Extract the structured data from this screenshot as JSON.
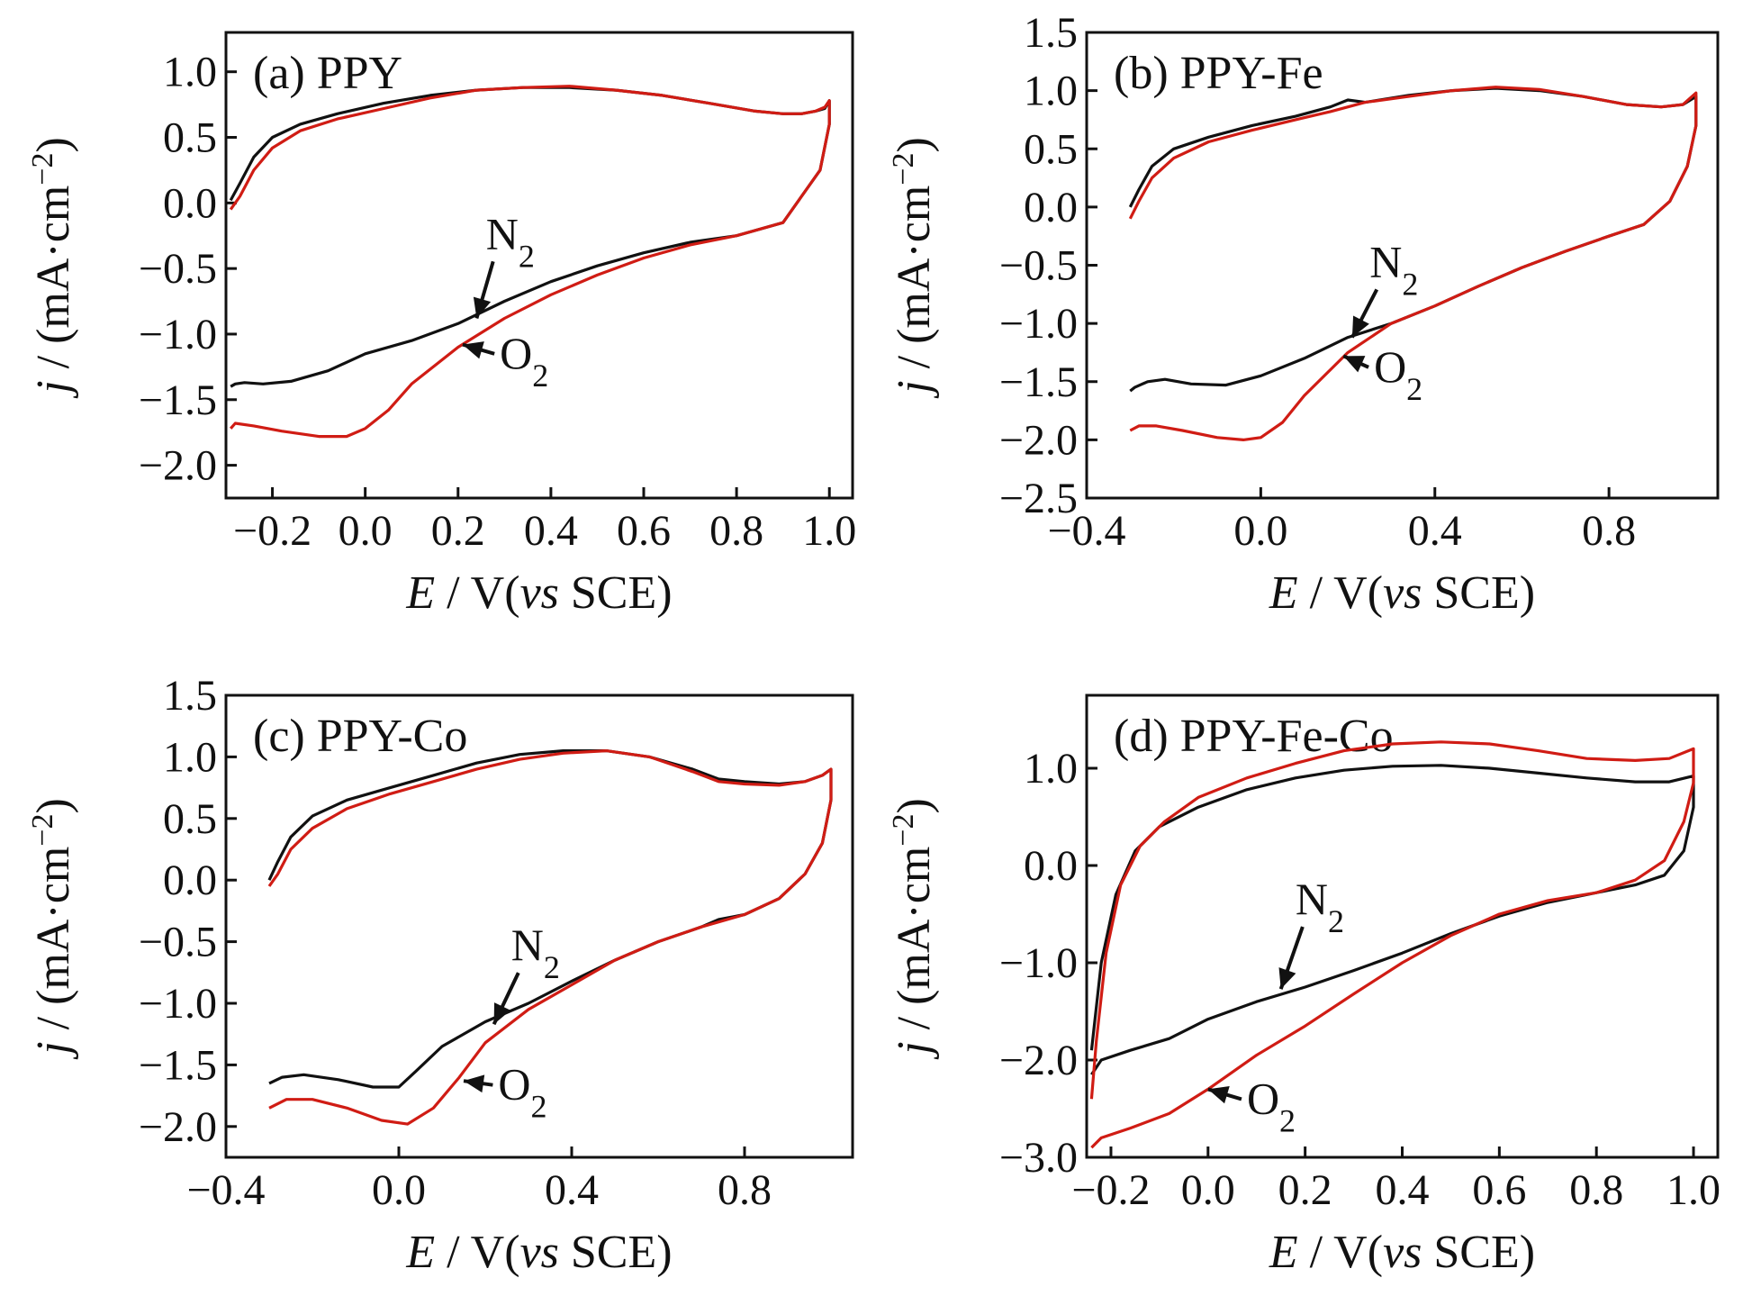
{
  "chart_data": [
    {
      "type": "line",
      "panel_label": "(a) PPY",
      "xlabel": {
        "italic": "E",
        "main": " / V(",
        "italic2": "vs",
        "tail": " SCE)"
      },
      "ylabel": {
        "italic": "j",
        "main": " / (mA·cm",
        "sup": "−2",
        "tail": ")"
      },
      "xlim": [
        -0.3,
        1.05
      ],
      "ylim": [
        -2.25,
        1.3
      ],
      "xticks": [
        -0.2,
        0.0,
        0.2,
        0.4,
        0.6,
        0.8,
        1.0
      ],
      "xtick_labels": [
        "−0.2",
        "0.0",
        "0.2",
        "0.4",
        "0.6",
        "0.8",
        "1.0"
      ],
      "yticks": [
        1.0,
        0.5,
        0.0,
        -0.5,
        -1.0,
        -1.5,
        -2.0
      ],
      "ytick_labels": [
        "1.0",
        "0.5",
        "0.0",
        "−0.5",
        "−1.0",
        "−1.5",
        "−2.0"
      ],
      "annotations": [
        {
          "label": "N",
          "sub": "2",
          "x": 0.26,
          "y": -0.35,
          "tip": [
            0.24,
            -0.88
          ]
        },
        {
          "label": "O",
          "sub": "2",
          "x": 0.29,
          "y": -1.26,
          "tip": [
            0.21,
            -1.08
          ]
        }
      ],
      "series": [
        {
          "name": "N2",
          "color": "#111111",
          "x": [
            -0.29,
            -0.27,
            -0.24,
            -0.2,
            -0.14,
            -0.06,
            0.04,
            0.14,
            0.24,
            0.34,
            0.44,
            0.54,
            0.64,
            0.74,
            0.84,
            0.9,
            0.94,
            0.97,
            0.99,
            1.0,
            1.0,
            0.98,
            0.94,
            0.9,
            0.8,
            0.7,
            0.6,
            0.5,
            0.4,
            0.3,
            0.2,
            0.1,
            0.0,
            -0.08,
            -0.16,
            -0.22,
            -0.26,
            -0.28,
            -0.29
          ],
          "y": [
            0.02,
            0.15,
            0.35,
            0.5,
            0.6,
            0.68,
            0.76,
            0.82,
            0.86,
            0.88,
            0.88,
            0.86,
            0.82,
            0.76,
            0.7,
            0.68,
            0.68,
            0.7,
            0.72,
            0.78,
            0.6,
            0.25,
            0.05,
            -0.15,
            -0.25,
            -0.3,
            -0.38,
            -0.48,
            -0.6,
            -0.75,
            -0.92,
            -1.05,
            -1.15,
            -1.28,
            -1.36,
            -1.38,
            -1.37,
            -1.38,
            -1.4
          ]
        },
        {
          "name": "O2",
          "color": "#d01c14",
          "x": [
            -0.29,
            -0.27,
            -0.24,
            -0.2,
            -0.14,
            -0.06,
            0.04,
            0.14,
            0.24,
            0.34,
            0.44,
            0.54,
            0.64,
            0.74,
            0.84,
            0.9,
            0.94,
            0.97,
            0.99,
            1.0,
            1.0,
            0.98,
            0.94,
            0.9,
            0.8,
            0.7,
            0.6,
            0.5,
            0.4,
            0.3,
            0.2,
            0.1,
            0.05,
            0.0,
            -0.04,
            -0.1,
            -0.18,
            -0.24,
            -0.28,
            -0.29
          ],
          "y": [
            -0.05,
            0.05,
            0.25,
            0.42,
            0.55,
            0.64,
            0.72,
            0.8,
            0.86,
            0.88,
            0.89,
            0.86,
            0.82,
            0.76,
            0.7,
            0.68,
            0.68,
            0.7,
            0.73,
            0.78,
            0.6,
            0.25,
            0.05,
            -0.15,
            -0.25,
            -0.32,
            -0.42,
            -0.55,
            -0.7,
            -0.88,
            -1.1,
            -1.38,
            -1.58,
            -1.72,
            -1.78,
            -1.78,
            -1.74,
            -1.7,
            -1.68,
            -1.72
          ]
        }
      ]
    },
    {
      "type": "line",
      "panel_label": "(b) PPY-Fe",
      "xlabel": {
        "italic": "E",
        "main": " / V(",
        "italic2": "vs",
        "tail": " SCE)"
      },
      "ylabel": {
        "italic": "j",
        "main": " / (mA·cm",
        "sup": "−2",
        "tail": ")"
      },
      "xlim": [
        -0.4,
        1.05
      ],
      "ylim": [
        -2.5,
        1.5
      ],
      "xticks": [
        -0.4,
        0.0,
        0.4,
        0.8
      ],
      "xtick_labels": [
        "−0.4",
        "0.0",
        "0.4",
        "0.8"
      ],
      "yticks": [
        1.5,
        1.0,
        0.5,
        0.0,
        -0.5,
        -1.0,
        -1.5,
        -2.0,
        -2.5
      ],
      "ytick_labels": [
        "1.5",
        "1.0",
        "0.5",
        "0.0",
        "−0.5",
        "−1.0",
        "−1.5",
        "−2.0",
        "−2.5"
      ],
      "annotations": [
        {
          "label": "N",
          "sub": "2",
          "x": 0.25,
          "y": -0.6,
          "tip": [
            0.21,
            -1.12
          ]
        },
        {
          "label": "O",
          "sub": "2",
          "x": 0.26,
          "y": -1.5,
          "tip": [
            0.19,
            -1.28
          ]
        }
      ],
      "series": [
        {
          "name": "N2",
          "color": "#111111",
          "x": [
            -0.3,
            -0.28,
            -0.25,
            -0.2,
            -0.12,
            -0.02,
            0.08,
            0.16,
            0.2,
            0.24,
            0.34,
            0.44,
            0.54,
            0.64,
            0.74,
            0.84,
            0.92,
            0.97,
            1.0,
            1.0,
            0.98,
            0.94,
            0.88,
            0.8,
            0.7,
            0.6,
            0.5,
            0.4,
            0.3,
            0.2,
            0.1,
            0.0,
            -0.08,
            -0.16,
            -0.22,
            -0.26,
            -0.29,
            -0.3
          ],
          "y": [
            0.0,
            0.15,
            0.35,
            0.5,
            0.6,
            0.7,
            0.78,
            0.86,
            0.92,
            0.9,
            0.96,
            1.0,
            1.02,
            1.0,
            0.95,
            0.88,
            0.86,
            0.88,
            0.95,
            0.7,
            0.35,
            0.05,
            -0.15,
            -0.25,
            -0.38,
            -0.52,
            -0.68,
            -0.85,
            -1.0,
            -1.12,
            -1.3,
            -1.45,
            -1.53,
            -1.52,
            -1.48,
            -1.5,
            -1.55,
            -1.58
          ]
        },
        {
          "name": "O2",
          "color": "#d01c14",
          "x": [
            -0.3,
            -0.28,
            -0.25,
            -0.2,
            -0.12,
            -0.02,
            0.08,
            0.16,
            0.24,
            0.34,
            0.44,
            0.54,
            0.64,
            0.74,
            0.84,
            0.92,
            0.97,
            1.0,
            1.0,
            0.98,
            0.94,
            0.88,
            0.8,
            0.7,
            0.6,
            0.5,
            0.4,
            0.3,
            0.2,
            0.1,
            0.05,
            0.0,
            -0.04,
            -0.1,
            -0.18,
            -0.24,
            -0.28,
            -0.3
          ],
          "y": [
            -0.1,
            0.05,
            0.25,
            0.42,
            0.56,
            0.66,
            0.75,
            0.82,
            0.9,
            0.95,
            1.0,
            1.03,
            1.01,
            0.95,
            0.88,
            0.86,
            0.88,
            0.98,
            0.7,
            0.35,
            0.05,
            -0.15,
            -0.25,
            -0.38,
            -0.52,
            -0.68,
            -0.85,
            -1.0,
            -1.25,
            -1.62,
            -1.85,
            -1.98,
            -2.0,
            -1.98,
            -1.92,
            -1.88,
            -1.88,
            -1.92
          ]
        }
      ]
    },
    {
      "type": "line",
      "panel_label": "(c) PPY-Co",
      "xlabel": {
        "italic": "E",
        "main": " / V(",
        "italic2": "vs",
        "tail": " SCE)"
      },
      "ylabel": {
        "italic": "j",
        "main": " / (mA·cm",
        "sup": "−2",
        "tail": ")"
      },
      "xlim": [
        -0.4,
        1.05
      ],
      "ylim": [
        -2.25,
        1.5
      ],
      "xticks": [
        -0.4,
        0.0,
        0.4,
        0.8
      ],
      "xtick_labels": [
        "−0.4",
        "0.0",
        "0.4",
        "0.8"
      ],
      "yticks": [
        1.5,
        1.0,
        0.5,
        0.0,
        -0.5,
        -1.0,
        -1.5,
        -2.0
      ],
      "ytick_labels": [
        "1.5",
        "1.0",
        "0.5",
        "0.0",
        "−0.5",
        "−1.0",
        "−1.5",
        "−2.0"
      ],
      "annotations": [
        {
          "label": "N",
          "sub": "2",
          "x": 0.26,
          "y": -0.65,
          "tip": [
            0.22,
            -1.17
          ]
        },
        {
          "label": "O",
          "sub": "2",
          "x": 0.23,
          "y": -1.78,
          "tip": [
            0.15,
            -1.63
          ]
        }
      ],
      "series": [
        {
          "name": "N2",
          "color": "#111111",
          "x": [
            -0.3,
            -0.28,
            -0.25,
            -0.2,
            -0.12,
            -0.02,
            0.08,
            0.18,
            0.28,
            0.38,
            0.48,
            0.58,
            0.68,
            0.74,
            0.8,
            0.88,
            0.94,
            0.98,
            1.0,
            1.0,
            0.98,
            0.94,
            0.88,
            0.8,
            0.74,
            0.7,
            0.6,
            0.5,
            0.4,
            0.3,
            0.2,
            0.1,
            0.04,
            0.0,
            -0.06,
            -0.14,
            -0.22,
            -0.27,
            -0.3
          ],
          "y": [
            0.0,
            0.15,
            0.35,
            0.52,
            0.65,
            0.75,
            0.85,
            0.95,
            1.02,
            1.05,
            1.05,
            1.0,
            0.9,
            0.82,
            0.8,
            0.78,
            0.8,
            0.85,
            0.9,
            0.65,
            0.3,
            0.05,
            -0.15,
            -0.28,
            -0.32,
            -0.38,
            -0.5,
            -0.65,
            -0.82,
            -1.0,
            -1.15,
            -1.35,
            -1.55,
            -1.68,
            -1.68,
            -1.62,
            -1.58,
            -1.6,
            -1.65
          ]
        },
        {
          "name": "O2",
          "color": "#d01c14",
          "x": [
            -0.3,
            -0.28,
            -0.25,
            -0.2,
            -0.12,
            -0.02,
            0.08,
            0.18,
            0.28,
            0.38,
            0.48,
            0.58,
            0.68,
            0.74,
            0.8,
            0.88,
            0.94,
            0.98,
            1.0,
            1.0,
            0.98,
            0.94,
            0.88,
            0.8,
            0.7,
            0.6,
            0.5,
            0.4,
            0.3,
            0.2,
            0.14,
            0.08,
            0.02,
            -0.04,
            -0.12,
            -0.2,
            -0.26,
            -0.3
          ],
          "y": [
            -0.05,
            0.05,
            0.25,
            0.42,
            0.58,
            0.7,
            0.8,
            0.9,
            0.98,
            1.03,
            1.05,
            1.0,
            0.88,
            0.8,
            0.78,
            0.77,
            0.8,
            0.85,
            0.9,
            0.65,
            0.3,
            0.05,
            -0.15,
            -0.28,
            -0.38,
            -0.5,
            -0.65,
            -0.85,
            -1.05,
            -1.32,
            -1.6,
            -1.85,
            -1.98,
            -1.95,
            -1.85,
            -1.78,
            -1.78,
            -1.85
          ]
        }
      ]
    },
    {
      "type": "line",
      "panel_label": "(d) PPY-Fe-Co",
      "xlabel": {
        "italic": "E",
        "main": " / V(",
        "italic2": "vs",
        "tail": " SCE)"
      },
      "ylabel": {
        "italic": "j",
        "main": " / (mA·cm",
        "sup": "−2",
        "tail": ")"
      },
      "xlim": [
        -0.25,
        1.05
      ],
      "ylim": [
        -3.0,
        1.75
      ],
      "xticks": [
        -0.2,
        0.0,
        0.2,
        0.4,
        0.6,
        0.8,
        1.0
      ],
      "xtick_labels": [
        "−0.2",
        "0.0",
        "0.2",
        "0.4",
        "0.6",
        "0.8",
        "1.0"
      ],
      "yticks": [
        1.0,
        0.0,
        -1.0,
        -2.0,
        -3.0
      ],
      "ytick_labels": [
        "1.0",
        "0.0",
        "−1.0",
        "−2.0",
        "−3.0"
      ],
      "annotations": [
        {
          "label": "N",
          "sub": "2",
          "x": 0.18,
          "y": -0.5,
          "tip": [
            0.15,
            -1.27
          ]
        },
        {
          "label": "O",
          "sub": "2",
          "x": 0.08,
          "y": -2.55,
          "tip": [
            0.0,
            -2.3
          ]
        }
      ],
      "series": [
        {
          "name": "N2",
          "color": "#111111",
          "x": [
            -0.24,
            -0.22,
            -0.19,
            -0.15,
            -0.1,
            -0.02,
            0.08,
            0.18,
            0.28,
            0.38,
            0.48,
            0.58,
            0.68,
            0.78,
            0.88,
            0.95,
            1.0,
            1.0,
            0.98,
            0.94,
            0.88,
            0.8,
            0.7,
            0.6,
            0.5,
            0.4,
            0.3,
            0.2,
            0.1,
            0.0,
            -0.08,
            -0.16,
            -0.22,
            -0.24
          ],
          "y": [
            -1.9,
            -1.0,
            -0.3,
            0.15,
            0.4,
            0.6,
            0.78,
            0.9,
            0.98,
            1.02,
            1.03,
            1.0,
            0.95,
            0.9,
            0.86,
            0.86,
            0.92,
            0.6,
            0.15,
            -0.1,
            -0.2,
            -0.28,
            -0.38,
            -0.52,
            -0.7,
            -0.9,
            -1.08,
            -1.25,
            -1.4,
            -1.58,
            -1.78,
            -1.9,
            -2.0,
            -2.15
          ]
        },
        {
          "name": "O2",
          "color": "#d01c14",
          "x": [
            -0.24,
            -0.23,
            -0.21,
            -0.18,
            -0.14,
            -0.09,
            -0.02,
            0.08,
            0.18,
            0.28,
            0.38,
            0.48,
            0.58,
            0.68,
            0.78,
            0.88,
            0.95,
            1.0,
            1.0,
            0.98,
            0.94,
            0.88,
            0.8,
            0.7,
            0.6,
            0.5,
            0.4,
            0.3,
            0.2,
            0.1,
            0.0,
            -0.08,
            -0.16,
            -0.22,
            -0.24
          ],
          "y": [
            -2.4,
            -1.8,
            -0.9,
            -0.2,
            0.2,
            0.45,
            0.7,
            0.9,
            1.05,
            1.18,
            1.25,
            1.27,
            1.25,
            1.18,
            1.1,
            1.08,
            1.1,
            1.2,
            0.85,
            0.45,
            0.05,
            -0.15,
            -0.28,
            -0.36,
            -0.5,
            -0.72,
            -1.0,
            -1.32,
            -1.65,
            -1.95,
            -2.3,
            -2.55,
            -2.7,
            -2.8,
            -2.9
          ]
        }
      ]
    }
  ]
}
